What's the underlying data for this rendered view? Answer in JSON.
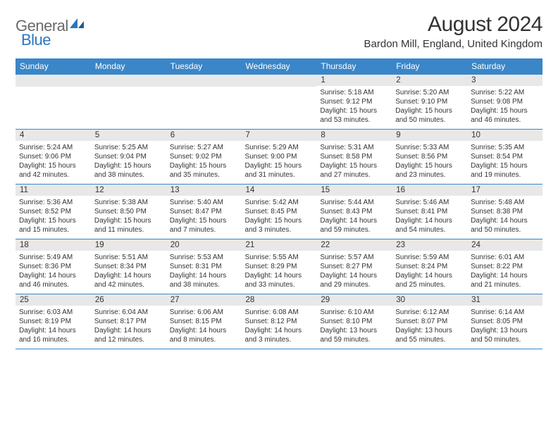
{
  "logo": {
    "part1": "General",
    "part2": "Blue"
  },
  "title": "August 2024",
  "location": "Bardon Mill, England, United Kingdom",
  "colors": {
    "header_bg": "#3a86c8",
    "header_text": "#ffffff",
    "daynum_bg": "#e8e8e8",
    "border": "#3a86c8",
    "logo_gray": "#6a6a6a",
    "logo_blue": "#2a77bd"
  },
  "day_headers": [
    "Sunday",
    "Monday",
    "Tuesday",
    "Wednesday",
    "Thursday",
    "Friday",
    "Saturday"
  ],
  "weeks": [
    [
      {
        "n": "",
        "lines": []
      },
      {
        "n": "",
        "lines": []
      },
      {
        "n": "",
        "lines": []
      },
      {
        "n": "",
        "lines": []
      },
      {
        "n": "1",
        "lines": [
          "Sunrise: 5:18 AM",
          "Sunset: 9:12 PM",
          "Daylight: 15 hours",
          "and 53 minutes."
        ]
      },
      {
        "n": "2",
        "lines": [
          "Sunrise: 5:20 AM",
          "Sunset: 9:10 PM",
          "Daylight: 15 hours",
          "and 50 minutes."
        ]
      },
      {
        "n": "3",
        "lines": [
          "Sunrise: 5:22 AM",
          "Sunset: 9:08 PM",
          "Daylight: 15 hours",
          "and 46 minutes."
        ]
      }
    ],
    [
      {
        "n": "4",
        "lines": [
          "Sunrise: 5:24 AM",
          "Sunset: 9:06 PM",
          "Daylight: 15 hours",
          "and 42 minutes."
        ]
      },
      {
        "n": "5",
        "lines": [
          "Sunrise: 5:25 AM",
          "Sunset: 9:04 PM",
          "Daylight: 15 hours",
          "and 38 minutes."
        ]
      },
      {
        "n": "6",
        "lines": [
          "Sunrise: 5:27 AM",
          "Sunset: 9:02 PM",
          "Daylight: 15 hours",
          "and 35 minutes."
        ]
      },
      {
        "n": "7",
        "lines": [
          "Sunrise: 5:29 AM",
          "Sunset: 9:00 PM",
          "Daylight: 15 hours",
          "and 31 minutes."
        ]
      },
      {
        "n": "8",
        "lines": [
          "Sunrise: 5:31 AM",
          "Sunset: 8:58 PM",
          "Daylight: 15 hours",
          "and 27 minutes."
        ]
      },
      {
        "n": "9",
        "lines": [
          "Sunrise: 5:33 AM",
          "Sunset: 8:56 PM",
          "Daylight: 15 hours",
          "and 23 minutes."
        ]
      },
      {
        "n": "10",
        "lines": [
          "Sunrise: 5:35 AM",
          "Sunset: 8:54 PM",
          "Daylight: 15 hours",
          "and 19 minutes."
        ]
      }
    ],
    [
      {
        "n": "11",
        "lines": [
          "Sunrise: 5:36 AM",
          "Sunset: 8:52 PM",
          "Daylight: 15 hours",
          "and 15 minutes."
        ]
      },
      {
        "n": "12",
        "lines": [
          "Sunrise: 5:38 AM",
          "Sunset: 8:50 PM",
          "Daylight: 15 hours",
          "and 11 minutes."
        ]
      },
      {
        "n": "13",
        "lines": [
          "Sunrise: 5:40 AM",
          "Sunset: 8:47 PM",
          "Daylight: 15 hours",
          "and 7 minutes."
        ]
      },
      {
        "n": "14",
        "lines": [
          "Sunrise: 5:42 AM",
          "Sunset: 8:45 PM",
          "Daylight: 15 hours",
          "and 3 minutes."
        ]
      },
      {
        "n": "15",
        "lines": [
          "Sunrise: 5:44 AM",
          "Sunset: 8:43 PM",
          "Daylight: 14 hours",
          "and 59 minutes."
        ]
      },
      {
        "n": "16",
        "lines": [
          "Sunrise: 5:46 AM",
          "Sunset: 8:41 PM",
          "Daylight: 14 hours",
          "and 54 minutes."
        ]
      },
      {
        "n": "17",
        "lines": [
          "Sunrise: 5:48 AM",
          "Sunset: 8:38 PM",
          "Daylight: 14 hours",
          "and 50 minutes."
        ]
      }
    ],
    [
      {
        "n": "18",
        "lines": [
          "Sunrise: 5:49 AM",
          "Sunset: 8:36 PM",
          "Daylight: 14 hours",
          "and 46 minutes."
        ]
      },
      {
        "n": "19",
        "lines": [
          "Sunrise: 5:51 AM",
          "Sunset: 8:34 PM",
          "Daylight: 14 hours",
          "and 42 minutes."
        ]
      },
      {
        "n": "20",
        "lines": [
          "Sunrise: 5:53 AM",
          "Sunset: 8:31 PM",
          "Daylight: 14 hours",
          "and 38 minutes."
        ]
      },
      {
        "n": "21",
        "lines": [
          "Sunrise: 5:55 AM",
          "Sunset: 8:29 PM",
          "Daylight: 14 hours",
          "and 33 minutes."
        ]
      },
      {
        "n": "22",
        "lines": [
          "Sunrise: 5:57 AM",
          "Sunset: 8:27 PM",
          "Daylight: 14 hours",
          "and 29 minutes."
        ]
      },
      {
        "n": "23",
        "lines": [
          "Sunrise: 5:59 AM",
          "Sunset: 8:24 PM",
          "Daylight: 14 hours",
          "and 25 minutes."
        ]
      },
      {
        "n": "24",
        "lines": [
          "Sunrise: 6:01 AM",
          "Sunset: 8:22 PM",
          "Daylight: 14 hours",
          "and 21 minutes."
        ]
      }
    ],
    [
      {
        "n": "25",
        "lines": [
          "Sunrise: 6:03 AM",
          "Sunset: 8:19 PM",
          "Daylight: 14 hours",
          "and 16 minutes."
        ]
      },
      {
        "n": "26",
        "lines": [
          "Sunrise: 6:04 AM",
          "Sunset: 8:17 PM",
          "Daylight: 14 hours",
          "and 12 minutes."
        ]
      },
      {
        "n": "27",
        "lines": [
          "Sunrise: 6:06 AM",
          "Sunset: 8:15 PM",
          "Daylight: 14 hours",
          "and 8 minutes."
        ]
      },
      {
        "n": "28",
        "lines": [
          "Sunrise: 6:08 AM",
          "Sunset: 8:12 PM",
          "Daylight: 14 hours",
          "and 3 minutes."
        ]
      },
      {
        "n": "29",
        "lines": [
          "Sunrise: 6:10 AM",
          "Sunset: 8:10 PM",
          "Daylight: 13 hours",
          "and 59 minutes."
        ]
      },
      {
        "n": "30",
        "lines": [
          "Sunrise: 6:12 AM",
          "Sunset: 8:07 PM",
          "Daylight: 13 hours",
          "and 55 minutes."
        ]
      },
      {
        "n": "31",
        "lines": [
          "Sunrise: 6:14 AM",
          "Sunset: 8:05 PM",
          "Daylight: 13 hours",
          "and 50 minutes."
        ]
      }
    ]
  ]
}
